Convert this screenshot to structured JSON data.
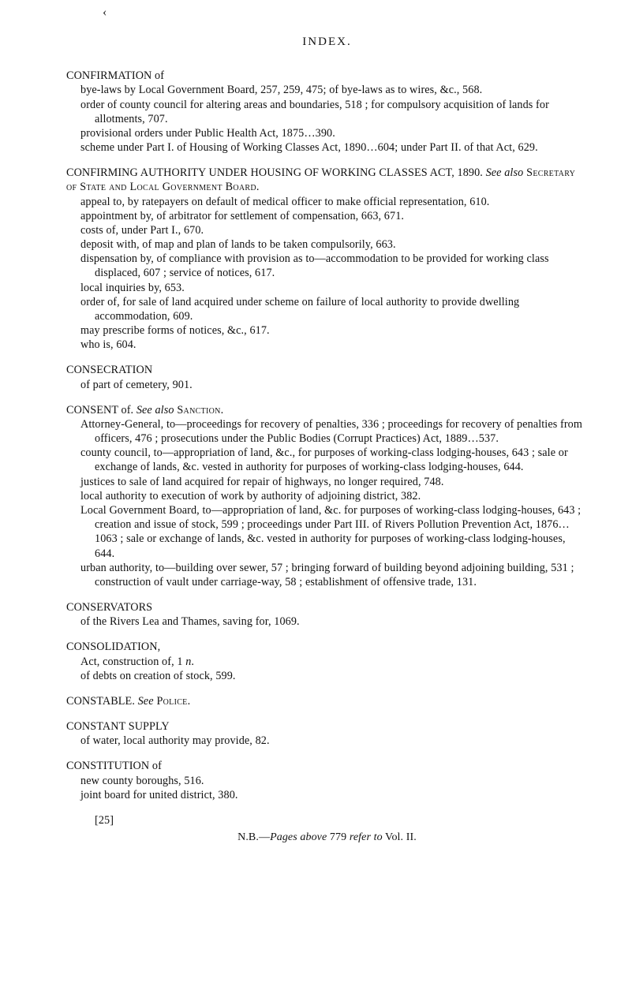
{
  "page": {
    "cookie_mark": "‹",
    "title": "INDEX."
  },
  "entries": [
    {
      "head": "CONFIRMATION of",
      "subs": [
        "bye-laws by Local Government Board, 257, 259, 475; of bye-laws as to wires, &c., 568.",
        "order of county council for altering areas and boundaries, 518 ; for compulsory acquisition of lands for allotments, 707.",
        "provisional orders under Public Health Act, 1875…390.",
        "scheme under Part I. of Housing of Working Classes Act, 1890…604; under Part II. of that Act, 629."
      ]
    },
    {
      "head_parts": {
        "plain_pre": "CONFIRMING AUTHORITY UNDER HOUSING OF WORKING CLASSES ACT, 1890.   ",
        "see_also": "See also",
        "sc_tail": " Secretary of State and Local Government Board."
      },
      "subs": [
        "appeal to, by ratepayers on default of medical officer to make official representation, 610.",
        "appointment by, of arbitrator for settlement of compensation, 663, 671.",
        "costs of, under Part I., 670.",
        "deposit with, of map and plan of lands to be taken compulsorily, 663.",
        "dispensation by, of compliance with provision as to—accommodation to be provided for working class displaced, 607 ; service of notices, 617.",
        "local inquiries by, 653.",
        "order of, for sale of land acquired under scheme on failure of local authority to provide dwelling accommodation, 609.",
        "may prescribe forms of notices, &c., 617.",
        "who is, 604."
      ]
    },
    {
      "head": "CONSECRATION",
      "subs": [
        "of part of cemetery, 901."
      ]
    },
    {
      "head_parts": {
        "plain_pre": "CONSENT of.   ",
        "see_also": "See also",
        "sc_tail": " Sanction."
      },
      "subs": [
        "Attorney-General, to—proceedings for recovery of penalties, 336 ; proceedings for recovery of penalties from officers, 476 ; prosecutions under the Public Bodies (Corrupt Practices) Act, 1889…537.",
        "county council, to—appropriation of land, &c., for purposes of working-class lodging-houses, 643 ; sale or exchange of lands, &c. vested in authority for purposes of working-class lodging-houses, 644.",
        "justices to sale of land acquired for repair of highways, no longer required, 748.",
        "local authority to execution of work by authority of adjoining district, 382.",
        "Local Government Board, to—appropriation of land, &c. for purposes of working-class lodging-houses, 643 ; creation and issue of stock, 599 ; proceedings under Part III. of Rivers Pollution Prevention Act, 1876…1063 ; sale or exchange of lands, &c. vested in authority for purposes of working-class lodging-houses, 644.",
        "urban authority, to—building over sewer, 57 ; bringing forward of building beyond adjoining building, 531 ; construction of vault under carriage-way, 58 ; establishment of offensive trade, 131."
      ]
    },
    {
      "head": "CONSERVATORS",
      "subs": [
        "of the Rivers Lea and Thames, saving for, 1069."
      ]
    },
    {
      "head": "CONSOLIDATION,",
      "subs_rich": [
        {
          "pre": "Act, construction of, 1 ",
          "ital": "n",
          "post": "."
        },
        {
          "pre": "of debts on creation of stock, 599."
        }
      ]
    },
    {
      "head_parts": {
        "plain_pre": "CONSTABLE.   ",
        "see": "See",
        "sc_tail": " Police."
      },
      "subs": []
    },
    {
      "head": "CONSTANT SUPPLY",
      "subs": [
        "of water, local authority may provide, 82."
      ]
    },
    {
      "head": "CONSTITUTION of",
      "subs": [
        "new county boroughs, 516.",
        "joint board for united district, 380."
      ]
    }
  ],
  "footer": {
    "bracket": "[25]",
    "ref_pre": "N.B.—",
    "ref_ital": "Pages above",
    "ref_mid": " 779 ",
    "ref_ital2": "refer to",
    "ref_post": " Vol. II."
  }
}
